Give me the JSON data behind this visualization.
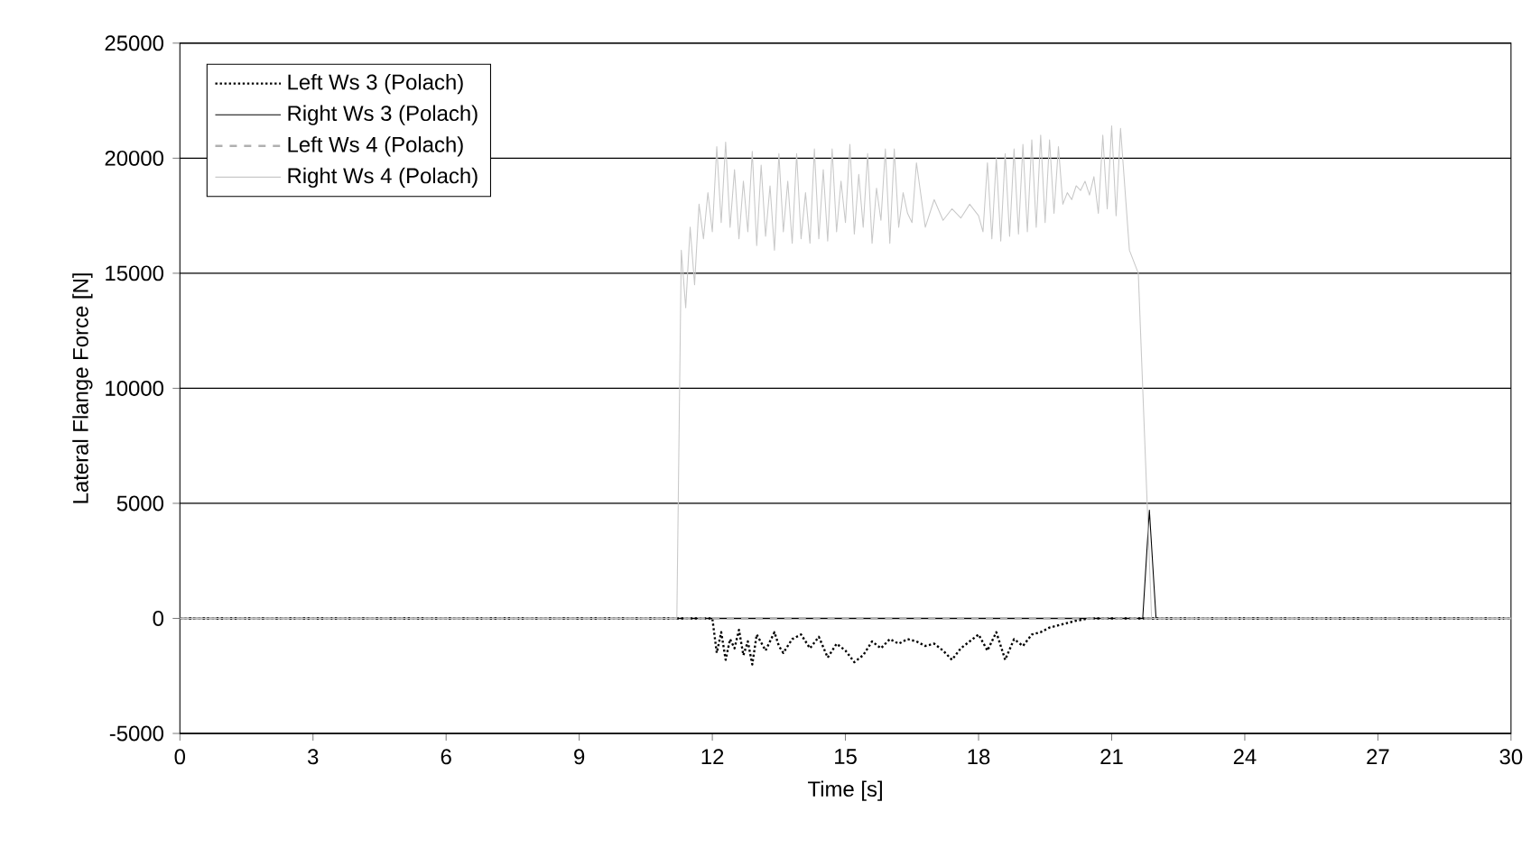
{
  "chart_data": {
    "type": "line",
    "xlabel": "Time [s]",
    "ylabel": "Lateral Flange Force [N]",
    "xlim": [
      0,
      30
    ],
    "xticks": [
      0,
      3,
      6,
      9,
      12,
      15,
      18,
      21,
      24,
      27,
      30
    ],
    "ylim": [
      -5000,
      25000
    ],
    "yticks": [
      -5000,
      0,
      5000,
      10000,
      15000,
      20000,
      25000
    ],
    "grid": "y",
    "legend": "top left",
    "marker": "none",
    "series": [
      {
        "name": "Left Ws 3 (Polach)",
        "color": "#000000",
        "line_style": "dotted",
        "x": [
          0,
          12.0,
          12.1,
          12.2,
          12.3,
          12.4,
          12.5,
          12.6,
          12.7,
          12.8,
          12.9,
          13.0,
          13.2,
          13.4,
          13.5,
          13.6,
          13.8,
          14.0,
          14.2,
          14.4,
          14.6,
          14.8,
          15.0,
          15.2,
          15.4,
          15.6,
          15.8,
          16.0,
          16.2,
          16.4,
          16.6,
          16.8,
          17.0,
          17.2,
          17.4,
          17.6,
          17.8,
          18.0,
          18.2,
          18.4,
          18.6,
          18.8,
          19.0,
          19.2,
          19.4,
          19.6,
          19.8,
          20.0,
          20.2,
          20.5,
          30
        ],
        "values": [
          0,
          0,
          -1500,
          -600,
          -1800,
          -900,
          -1300,
          -500,
          -1600,
          -1000,
          -2000,
          -700,
          -1400,
          -600,
          -1200,
          -1500,
          -900,
          -700,
          -1300,
          -800,
          -1700,
          -1100,
          -1400,
          -1900,
          -1600,
          -1000,
          -1300,
          -900,
          -1100,
          -900,
          -1000,
          -1200,
          -1100,
          -1400,
          -1800,
          -1300,
          -1000,
          -700,
          -1400,
          -600,
          -1800,
          -900,
          -1200,
          -700,
          -600,
          -400,
          -300,
          -200,
          -100,
          0,
          0
        ]
      },
      {
        "name": "Right Ws 3 (Polach)",
        "color": "#000000",
        "line_style": "solid",
        "x": [
          0,
          21.7,
          21.85,
          22.0,
          30
        ],
        "values": [
          0,
          0,
          4700,
          0,
          0
        ]
      },
      {
        "name": "Left Ws 4 (Polach)",
        "color": "#b0b0b0",
        "line_style": "dashed",
        "x": [
          0,
          30
        ],
        "values": [
          0,
          0
        ]
      },
      {
        "name": "Right Ws 4 (Polach)",
        "color": "#c8c8c8",
        "line_style": "solid",
        "x": [
          0,
          11.2,
          11.3,
          11.4,
          11.5,
          11.6,
          11.7,
          11.8,
          11.9,
          12.0,
          12.1,
          12.2,
          12.3,
          12.4,
          12.5,
          12.6,
          12.7,
          12.8,
          12.9,
          13.0,
          13.1,
          13.2,
          13.3,
          13.4,
          13.5,
          13.6,
          13.7,
          13.8,
          13.9,
          14.0,
          14.1,
          14.2,
          14.3,
          14.4,
          14.5,
          14.6,
          14.7,
          14.8,
          14.9,
          15.0,
          15.1,
          15.2,
          15.3,
          15.4,
          15.5,
          15.6,
          15.7,
          15.8,
          15.9,
          16.0,
          16.1,
          16.2,
          16.3,
          16.4,
          16.5,
          16.6,
          16.8,
          17.0,
          17.2,
          17.4,
          17.6,
          17.8,
          18.0,
          18.1,
          18.2,
          18.3,
          18.4,
          18.5,
          18.6,
          18.7,
          18.8,
          18.9,
          19.0,
          19.1,
          19.2,
          19.3,
          19.4,
          19.5,
          19.6,
          19.7,
          19.8,
          19.9,
          20.0,
          20.1,
          20.2,
          20.3,
          20.4,
          20.5,
          20.6,
          20.7,
          20.8,
          20.9,
          21.0,
          21.1,
          21.2,
          21.4,
          21.6,
          21.8,
          21.9,
          30
        ],
        "values": [
          0,
          0,
          16000,
          13500,
          17000,
          14500,
          18000,
          16500,
          18500,
          16800,
          20500,
          17200,
          20700,
          17000,
          19500,
          16500,
          19000,
          16800,
          20300,
          16200,
          19700,
          16600,
          18800,
          16000,
          20200,
          16800,
          19000,
          16300,
          20200,
          16500,
          18500,
          16300,
          20400,
          16500,
          19500,
          16400,
          20400,
          16800,
          19000,
          17200,
          20600,
          16700,
          19300,
          17000,
          20200,
          16300,
          18700,
          17300,
          20400,
          16300,
          20400,
          17000,
          18500,
          17600,
          17200,
          19800,
          17000,
          18200,
          17300,
          17800,
          17400,
          18000,
          17500,
          16800,
          19800,
          16500,
          20000,
          16400,
          20200,
          16600,
          20400,
          16700,
          20600,
          16800,
          20800,
          17000,
          21000,
          17200,
          20800,
          17600,
          20500,
          18000,
          18500,
          18200,
          18800,
          18600,
          19000,
          18400,
          19200,
          17600,
          21000,
          17800,
          21400,
          17500,
          21300,
          16000,
          15000,
          5000,
          0,
          0
        ]
      }
    ]
  }
}
